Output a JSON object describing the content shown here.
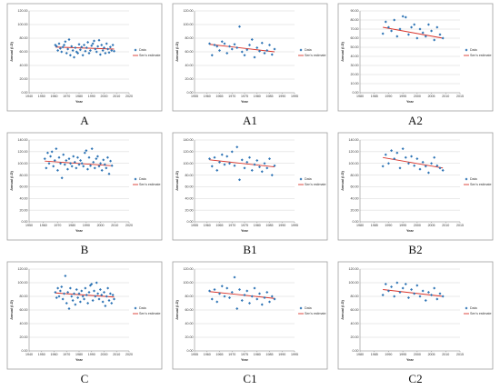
{
  "figure": {
    "colors": {
      "points": "#2e74b5",
      "trend": "#d9342b"
    },
    "legend": {
      "data_label": "Data",
      "trend_label": "Sen's estimate"
    },
    "ylabel": "Annual (I-D)",
    "xlabel": "Year"
  },
  "chart_data": [
    {
      "panel": "A",
      "type": "scatter",
      "xlim": [
        1940,
        2020
      ],
      "xticks": [
        "1940",
        "1950",
        "1960",
        "1970",
        "1980",
        "1990",
        "2000",
        "2010",
        "2020"
      ],
      "ylim": [
        0,
        120
      ],
      "yticks": [
        "0.00",
        "20.00",
        "40.00",
        "60.00",
        "80.00",
        "100.00",
        "120.00"
      ],
      "xlabel": "Year",
      "ylabel": "Annual (I-D)",
      "series": [
        {
          "name": "Data",
          "x": [
            1961,
            1962,
            1963,
            1964,
            1965,
            1966,
            1967,
            1968,
            1969,
            1970,
            1971,
            1972,
            1973,
            1974,
            1975,
            1976,
            1977,
            1978,
            1979,
            1980,
            1981,
            1982,
            1983,
            1984,
            1985,
            1986,
            1987,
            1988,
            1989,
            1990,
            1991,
            1992,
            1993,
            1994,
            1995,
            1996,
            1997,
            1998,
            1999,
            2000,
            2001,
            2002,
            2003,
            2004,
            2005,
            2006,
            2007,
            2008
          ],
          "y": [
            70,
            68,
            62,
            72,
            65,
            60,
            67,
            70,
            75,
            58,
            64,
            78,
            55,
            68,
            62,
            52,
            66,
            60,
            58,
            71,
            63,
            67,
            55,
            70,
            61,
            66,
            74,
            58,
            62,
            69,
            72,
            76,
            64,
            60,
            68,
            77,
            56,
            70,
            62,
            66,
            58,
            72,
            64,
            59,
            67,
            62,
            70,
            61
          ]
        },
        {
          "name": "Sen's estimate",
          "type": "line",
          "x": [
            1961,
            2008
          ],
          "y": [
            67,
            64
          ]
        }
      ]
    },
    {
      "panel": "A1",
      "type": "scatter",
      "xlim": [
        1955,
        1995
      ],
      "xticks": [
        "1955",
        "1960",
        "1965",
        "1970",
        "1975",
        "1980",
        "1985",
        "1990",
        "1995"
      ],
      "ylim": [
        0,
        120
      ],
      "yticks": [
        "0.00",
        "20.00",
        "40.00",
        "60.00",
        "80.00",
        "100.00",
        "120.00"
      ],
      "xlabel": "Year",
      "ylabel": "Annual (I-D)",
      "series": [
        {
          "name": "Data",
          "x": [
            1961,
            1962,
            1963,
            1964,
            1965,
            1966,
            1967,
            1968,
            1969,
            1970,
            1971,
            1972,
            1973,
            1974,
            1975,
            1976,
            1977,
            1978,
            1979,
            1980,
            1981,
            1982,
            1983,
            1984,
            1985,
            1986,
            1987
          ],
          "y": [
            72,
            55,
            70,
            68,
            62,
            75,
            72,
            58,
            68,
            64,
            71,
            66,
            97,
            60,
            55,
            63,
            70,
            78,
            52,
            66,
            61,
            73,
            58,
            62,
            70,
            56,
            64
          ]
        },
        {
          "name": "Sen's estimate",
          "type": "line",
          "x": [
            1961,
            1987
          ],
          "y": [
            71,
            60
          ]
        }
      ]
    },
    {
      "panel": "A2",
      "type": "scatter",
      "xlim": [
        1980,
        2015
      ],
      "xticks": [
        "1980",
        "1985",
        "1990",
        "1995",
        "2000",
        "2005",
        "2010",
        "2015"
      ],
      "ylim": [
        0,
        90
      ],
      "yticks": [
        "0.00",
        "10.00",
        "20.00",
        "30.00",
        "40.00",
        "50.00",
        "60.00",
        "70.00",
        "80.00",
        "90.00"
      ],
      "xlabel": "Year",
      "ylabel": "Annual (I-D)",
      "series": [
        {
          "name": "Data",
          "x": [
            1988,
            1989,
            1990,
            1991,
            1992,
            1993,
            1994,
            1995,
            1996,
            1997,
            1998,
            1999,
            2000,
            2001,
            2002,
            2003,
            2004,
            2005,
            2006,
            2007,
            2008,
            2009
          ],
          "y": [
            65,
            78,
            72,
            68,
            80,
            62,
            70,
            84,
            83,
            64,
            72,
            75,
            60,
            70,
            66,
            62,
            75,
            68,
            58,
            72,
            64,
            60
          ]
        },
        {
          "name": "Sen's estimate",
          "type": "line",
          "x": [
            1988,
            2009
          ],
          "y": [
            72,
            60
          ]
        }
      ]
    },
    {
      "panel": "B",
      "type": "scatter",
      "xlim": [
        1950,
        2020
      ],
      "xticks": [
        "1950",
        "1960",
        "1970",
        "1980",
        "1990",
        "2000",
        "2010",
        "2020"
      ],
      "ylim": [
        0,
        140
      ],
      "yticks": [
        "0.00",
        "20.00",
        "40.00",
        "60.00",
        "80.00",
        "100.00",
        "120.00",
        "140.00"
      ],
      "xlabel": "Year",
      "ylabel": "Annual (I-D)",
      "series": [
        {
          "name": "Data",
          "x": [
            1961,
            1962,
            1963,
            1964,
            1965,
            1966,
            1967,
            1968,
            1969,
            1970,
            1971,
            1972,
            1973,
            1974,
            1975,
            1976,
            1977,
            1978,
            1979,
            1980,
            1981,
            1982,
            1983,
            1984,
            1985,
            1986,
            1987,
            1988,
            1989,
            1990,
            1991,
            1992,
            1993,
            1994,
            1995,
            1996,
            1997,
            1998,
            1999,
            2000,
            2001,
            2002,
            2003,
            2004,
            2005,
            2006,
            2007,
            2008
          ],
          "y": [
            108,
            92,
            118,
            100,
            112,
            120,
            95,
            105,
            125,
            88,
            110,
            100,
            75,
            115,
            98,
            105,
            90,
            108,
            100,
            95,
            112,
            102,
            92,
            110,
            98,
            105,
            100,
            95,
            118,
            122,
            90,
            110,
            96,
            125,
            102,
            92,
            108,
            112,
            95,
            100,
            88,
            106,
            98,
            92,
            110,
            82,
            104,
            96
          ]
        },
        {
          "name": "Sen's estimate",
          "type": "line",
          "x": [
            1961,
            2008
          ],
          "y": [
            104,
            96
          ]
        }
      ]
    },
    {
      "panel": "B1",
      "type": "scatter",
      "xlim": [
        1955,
        1995
      ],
      "xticks": [
        "1955",
        "1960",
        "1965",
        "1970",
        "1975",
        "1980",
        "1985",
        "1990",
        "1995"
      ],
      "ylim": [
        0,
        140
      ],
      "yticks": [
        "0.00",
        "20.00",
        "40.00",
        "60.00",
        "80.00",
        "100.00",
        "120.00",
        "140.00"
      ],
      "xlabel": "Year",
      "ylabel": "Annual (I-D)",
      "series": [
        {
          "name": "Data",
          "x": [
            1961,
            1962,
            1963,
            1964,
            1965,
            1966,
            1967,
            1968,
            1969,
            1970,
            1971,
            1972,
            1973,
            1974,
            1975,
            1976,
            1977,
            1978,
            1979,
            1980,
            1981,
            1982,
            1983,
            1984,
            1985,
            1986,
            1987
          ],
          "y": [
            108,
            95,
            110,
            88,
            102,
            115,
            98,
            112,
            100,
            120,
            96,
            128,
            72,
            106,
            92,
            102,
            110,
            88,
            98,
            105,
            94,
            86,
            100,
            92,
            108,
            80,
            96
          ]
        },
        {
          "name": "Sen's estimate",
          "type": "line",
          "x": [
            1961,
            1987
          ],
          "y": [
            106,
            94
          ]
        }
      ]
    },
    {
      "panel": "B2",
      "type": "scatter",
      "xlim": [
        1980,
        2015
      ],
      "xticks": [
        "1980",
        "1985",
        "1990",
        "1995",
        "2000",
        "2005",
        "2010",
        "2015"
      ],
      "ylim": [
        0,
        140
      ],
      "yticks": [
        "0.00",
        "20.00",
        "40.00",
        "60.00",
        "80.00",
        "100.00",
        "120.00",
        "140.00"
      ],
      "xlabel": "Year",
      "ylabel": "Annual (I-D)",
      "series": [
        {
          "name": "Data",
          "x": [
            1988,
            1989,
            1990,
            1991,
            1992,
            1993,
            1994,
            1995,
            1996,
            1997,
            1998,
            1999,
            2000,
            2001,
            2002,
            2003,
            2004,
            2005,
            2006,
            2007,
            2008,
            2009
          ],
          "y": [
            95,
            115,
            100,
            122,
            108,
            118,
            92,
            125,
            110,
            100,
            112,
            96,
            108,
            90,
            102,
            95,
            84,
            100,
            110,
            96,
            92,
            88
          ]
        },
        {
          "name": "Sen's estimate",
          "type": "line",
          "x": [
            1988,
            2009
          ],
          "y": [
            110,
            92
          ]
        }
      ]
    },
    {
      "panel": "C",
      "type": "scatter",
      "xlim": [
        1940,
        2020
      ],
      "xticks": [
        "1940",
        "1950",
        "1960",
        "1970",
        "1980",
        "1990",
        "2000",
        "2010",
        "2020"
      ],
      "ylim": [
        0,
        120
      ],
      "yticks": [
        "0.00",
        "20.00",
        "40.00",
        "60.00",
        "80.00",
        "100.00",
        "120.00"
      ],
      "xlabel": "Year",
      "ylabel": "Annual (I-D)",
      "series": [
        {
          "name": "Data",
          "x": [
            1961,
            1962,
            1963,
            1964,
            1965,
            1966,
            1967,
            1968,
            1969,
            1970,
            1971,
            1972,
            1973,
            1974,
            1975,
            1976,
            1977,
            1978,
            1979,
            1980,
            1981,
            1982,
            1983,
            1984,
            1985,
            1986,
            1987,
            1988,
            1989,
            1990,
            1991,
            1992,
            1993,
            1994,
            1995,
            1996,
            1997,
            1998,
            1999,
            2000,
            2001,
            2002,
            2003,
            2004,
            2005,
            2006,
            2007,
            2008
          ],
          "y": [
            86,
            78,
            92,
            80,
            88,
            94,
            76,
            84,
            110,
            70,
            86,
            62,
            92,
            80,
            74,
            84,
            68,
            90,
            78,
            84,
            72,
            88,
            80,
            76,
            92,
            82,
            70,
            86,
            96,
            98,
            74,
            88,
            80,
            100,
            84,
            76,
            90,
            82,
            72,
            86,
            66,
            80,
            92,
            74,
            84,
            70,
            82,
            76
          ]
        },
        {
          "name": "Sen's estimate",
          "type": "line",
          "x": [
            1961,
            2008
          ],
          "y": [
            85,
            79
          ]
        }
      ]
    },
    {
      "panel": "C1",
      "type": "scatter",
      "xlim": [
        1955,
        1995
      ],
      "xticks": [
        "1955",
        "1960",
        "1965",
        "1970",
        "1975",
        "1980",
        "1985",
        "1990",
        "1995"
      ],
      "ylim": [
        0,
        120
      ],
      "yticks": [
        "0.00",
        "20.00",
        "40.00",
        "60.00",
        "80.00",
        "100.00",
        "120.00"
      ],
      "xlabel": "Year",
      "ylabel": "Annual (I-D)",
      "series": [
        {
          "name": "Data",
          "x": [
            1961,
            1962,
            1963,
            1964,
            1965,
            1966,
            1967,
            1968,
            1969,
            1970,
            1971,
            1972,
            1973,
            1974,
            1975,
            1976,
            1977,
            1978,
            1979,
            1980,
            1981,
            1982,
            1983,
            1984,
            1985,
            1986,
            1987
          ],
          "y": [
            88,
            76,
            90,
            72,
            84,
            95,
            80,
            92,
            78,
            86,
            108,
            62,
            90,
            74,
            82,
            88,
            70,
            80,
            92,
            76,
            84,
            68,
            78,
            86,
            72,
            80,
            76
          ]
        },
        {
          "name": "Sen's estimate",
          "type": "line",
          "x": [
            1961,
            1987
          ],
          "y": [
            87,
            77
          ]
        }
      ]
    },
    {
      "panel": "C2",
      "type": "scatter",
      "xlim": [
        1980,
        2015
      ],
      "xticks": [
        "1980",
        "1985",
        "1990",
        "1995",
        "2000",
        "2005",
        "2010",
        "2015"
      ],
      "ylim": [
        0,
        120
      ],
      "yticks": [
        "0.00",
        "20.00",
        "40.00",
        "60.00",
        "80.00",
        "100.00",
        "120.00"
      ],
      "xlabel": "Year",
      "ylabel": "Annual (I-D)",
      "series": [
        {
          "name": "Data",
          "x": [
            1988,
            1989,
            1990,
            1991,
            1992,
            1993,
            1994,
            1995,
            1996,
            1997,
            1998,
            1999,
            2000,
            2001,
            2002,
            2003,
            2004,
            2005,
            2006,
            2007,
            2008,
            2009
          ],
          "y": [
            82,
            98,
            88,
            94,
            80,
            100,
            86,
            92,
            98,
            78,
            90,
            84,
            96,
            80,
            88,
            74,
            86,
            82,
            92,
            76,
            84,
            80
          ]
        },
        {
          "name": "Sen's estimate",
          "type": "line",
          "x": [
            1988,
            2009
          ],
          "y": [
            90,
            80
          ]
        }
      ]
    }
  ]
}
